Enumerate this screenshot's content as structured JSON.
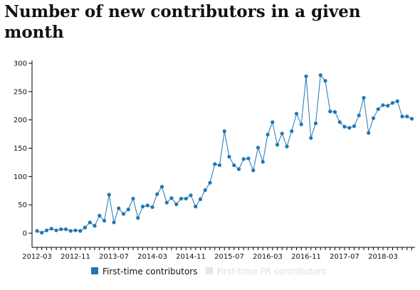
{
  "title": "Number of new contributors in a given month",
  "chart_data": {
    "type": "line",
    "title": "Number of new contributors in a given month",
    "xlabel": "",
    "ylabel": "",
    "ylim": [
      -25,
      305
    ],
    "y_ticks": [
      0,
      50,
      100,
      150,
      200,
      250,
      300
    ],
    "x_tick_labels": [
      "2012-03",
      "2012-11",
      "2013-07",
      "2014-03",
      "2014-11",
      "2015-07",
      "2016-03",
      "2016-11",
      "2017-07",
      "2018-03"
    ],
    "x_start": "2012-03",
    "grid": false,
    "legend_position": "bottom",
    "series": [
      {
        "name": "First-time contributors",
        "color": "#1f77b4",
        "visible": true,
        "values": [
          4,
          1,
          5,
          8,
          5,
          7,
          7,
          4,
          5,
          4,
          10,
          19,
          13,
          31,
          22,
          68,
          19,
          44,
          34,
          42,
          61,
          27,
          47,
          49,
          46,
          69,
          82,
          54,
          62,
          51,
          61,
          61,
          67,
          47,
          60,
          76,
          89,
          122,
          120,
          180,
          135,
          120,
          113,
          131,
          132,
          111,
          151,
          126,
          174,
          196,
          156,
          176,
          153,
          180,
          211,
          192,
          277,
          168,
          194,
          279,
          269,
          215,
          214,
          196,
          188,
          186,
          189,
          208,
          239,
          177,
          203,
          219,
          226,
          225,
          230,
          233,
          206,
          206,
          202
        ]
      },
      {
        "name": "First-time PR contributors",
        "color": "#e5e5ee",
        "visible": false,
        "values": []
      }
    ]
  }
}
